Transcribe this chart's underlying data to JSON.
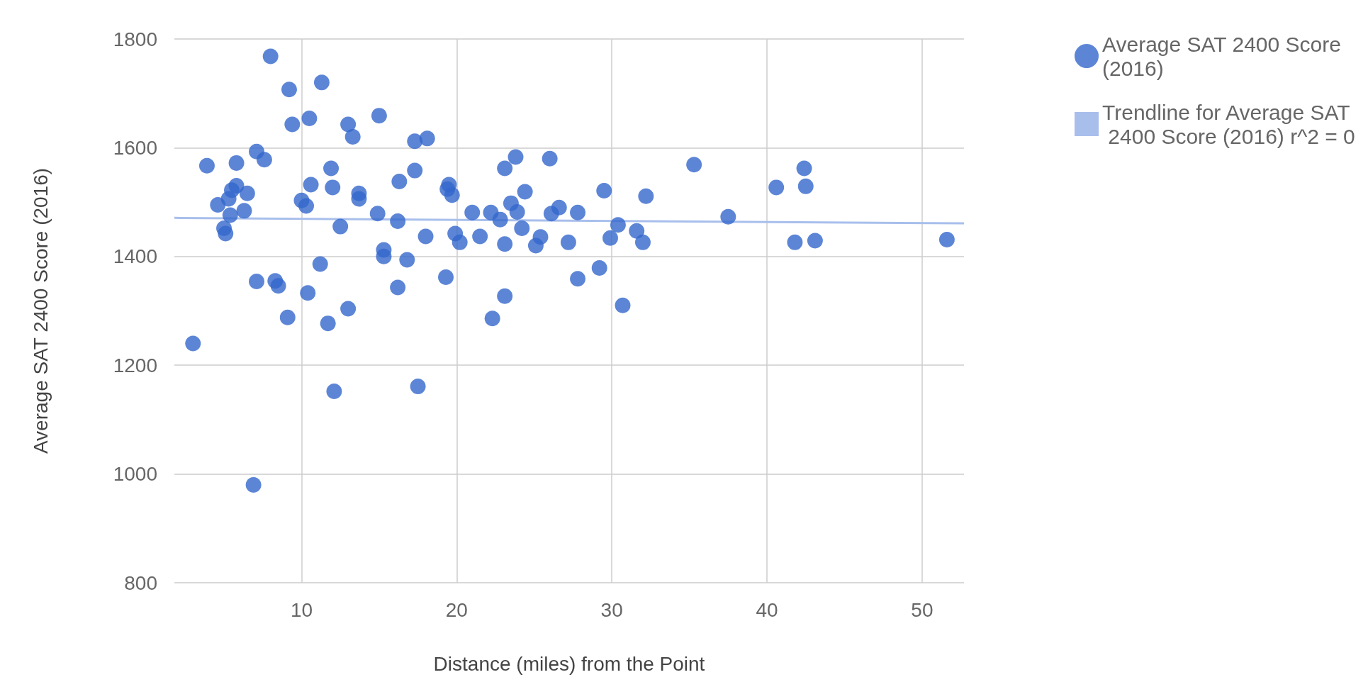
{
  "chart_data": {
    "type": "scatter",
    "xlabel": "Distance (miles) from the Point",
    "ylabel": "Average SAT 2400 Score (2016)",
    "xlim": [
      1.8,
      52.7
    ],
    "xticks": [
      10,
      20,
      30,
      40,
      50
    ],
    "ylim": [
      800,
      1800
    ],
    "yticks": [
      800,
      1000,
      1200,
      1400,
      1600,
      1800
    ],
    "grid": true,
    "legend": "top right",
    "series": [
      {
        "name": "Average SAT 2400 Score (2016)",
        "marker": "circle",
        "color": "#3366cc",
        "x": [
          3.0,
          3.9,
          4.6,
          5.0,
          5.1,
          5.4,
          5.3,
          5.5,
          5.8,
          5.8,
          6.5,
          6.3,
          7.1,
          7.1,
          7.6,
          6.9,
          8.0,
          8.3,
          8.5,
          9.2,
          9.4,
          9.1,
          10.0,
          10.3,
          10.5,
          10.6,
          10.4,
          11.2,
          11.3,
          11.9,
          12.0,
          11.7,
          12.1,
          12.5,
          13.0,
          13.0,
          13.3,
          13.7,
          13.7,
          15.0,
          14.9,
          15.3,
          15.3,
          16.2,
          16.2,
          16.3,
          16.8,
          17.3,
          17.3,
          17.5,
          18.1,
          18.0,
          19.3,
          19.4,
          19.5,
          19.7,
          19.9,
          20.2,
          21.0,
          21.5,
          22.2,
          22.3,
          22.8,
          23.1,
          23.1,
          23.1,
          23.5,
          23.8,
          23.9,
          24.2,
          24.4,
          25.1,
          25.4,
          26.0,
          26.1,
          26.6,
          27.2,
          27.8,
          27.8,
          29.2,
          29.5,
          29.9,
          30.4,
          30.7,
          31.6,
          32.0,
          32.2,
          35.3,
          37.5,
          40.6,
          41.8,
          42.4,
          42.5,
          43.1,
          51.6
        ],
        "values": [
          1240,
          1567,
          1495,
          1452,
          1442,
          1476,
          1506,
          1522,
          1572,
          1530,
          1516,
          1484,
          1354,
          1593,
          1578,
          980,
          1768,
          1355,
          1346,
          1707,
          1643,
          1288,
          1503,
          1493,
          1654,
          1532,
          1333,
          1386,
          1720,
          1562,
          1527,
          1277,
          1152,
          1455,
          1304,
          1643,
          1620,
          1516,
          1506,
          1659,
          1479,
          1412,
          1400,
          1465,
          1343,
          1538,
          1394,
          1612,
          1558,
          1161,
          1617,
          1437,
          1362,
          1524,
          1532,
          1513,
          1442,
          1426,
          1481,
          1437,
          1481,
          1286,
          1468,
          1423,
          1327,
          1562,
          1498,
          1583,
          1482,
          1452,
          1519,
          1420,
          1436,
          1580,
          1479,
          1490,
          1426,
          1481,
          1359,
          1379,
          1521,
          1434,
          1458,
          1310,
          1447,
          1426,
          1511,
          1569,
          1473,
          1527,
          1426,
          1562,
          1529,
          1429,
          1431
        ]
      },
      {
        "name": "Trendline for Average SAT 2400 Score (2016) r^2 = 0",
        "type": "line",
        "marker": "none",
        "color": "#a8bfec",
        "x": [
          1.8,
          52.7
        ],
        "values": [
          1471,
          1461
        ]
      }
    ]
  }
}
